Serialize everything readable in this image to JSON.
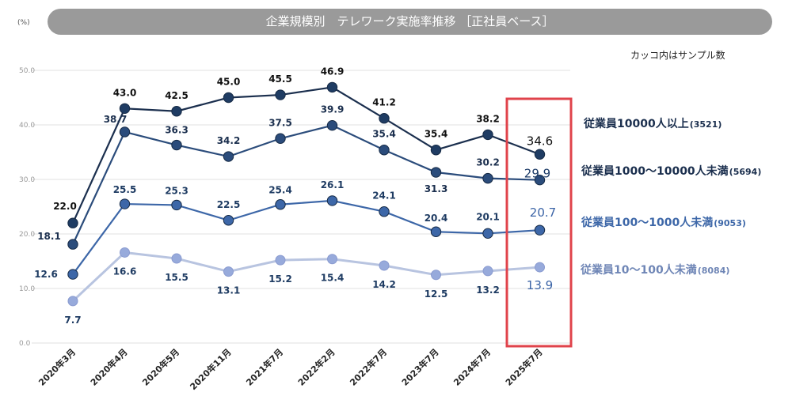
{
  "header": {
    "title": "企業規模別　テレワーク実施率推移 ［正社員ベース］",
    "unit": "(%)",
    "note": "カッコ内はサンプル数"
  },
  "chart_data": {
    "type": "line",
    "title": "企業規模別　テレワーク実施率推移 ［正社員ベース］",
    "ylabel": "(%)",
    "ylim": [
      0,
      50
    ],
    "yticks": [
      "0.0",
      "10.0",
      "20.0",
      "30.0",
      "40.0",
      "50.0"
    ],
    "categories": [
      "2020年3月",
      "2020年4月",
      "2020年5月",
      "2020年11月",
      "2021年7月",
      "2022年2月",
      "2022年7月",
      "2023年7月",
      "2024年7月",
      "2025年7月"
    ],
    "highlight_category": "2025年7月",
    "series": [
      {
        "name": "従業員10000人以上",
        "sample": "(3521)",
        "color": "#1b2f4e",
        "marker": "#1f3c63",
        "values": [
          22.0,
          43.0,
          42.5,
          45.0,
          45.5,
          46.9,
          41.2,
          35.4,
          38.2,
          34.6
        ],
        "labels": [
          "22.0",
          "43.0",
          "42.5",
          "45.0",
          "45.5",
          "46.9",
          "41.2",
          "35.4",
          "38.2",
          "34.6"
        ]
      },
      {
        "name": "従業員1000～10000人未満",
        "sample": "(5694)",
        "color": "#2b4c7b",
        "marker": "#2b4c7b",
        "values": [
          18.1,
          38.7,
          36.3,
          34.2,
          37.5,
          39.9,
          35.4,
          31.3,
          30.2,
          29.9
        ],
        "labels": [
          "18.1",
          "38.7",
          "36.3",
          "34.2",
          "37.5",
          "39.9",
          "35.4",
          "31.3",
          "30.2",
          "29.9"
        ]
      },
      {
        "name": "従業員100～1000人未満",
        "sample": "(9053)",
        "color": "#3d67a8",
        "marker": "#3d67a8",
        "values": [
          12.6,
          25.5,
          25.3,
          22.5,
          25.4,
          26.1,
          24.1,
          20.4,
          20.1,
          20.7
        ],
        "labels": [
          "12.6",
          "25.5",
          "25.3",
          "22.5",
          "25.4",
          "26.1",
          "24.1",
          "20.4",
          "20.1",
          "20.7"
        ]
      },
      {
        "name": "従業員10～100人未満",
        "sample": "(8084)",
        "color": "#b8c4e0",
        "marker": "#97aadb",
        "values": [
          7.7,
          16.6,
          15.5,
          13.1,
          15.2,
          15.4,
          14.2,
          12.5,
          13.2,
          13.9
        ],
        "labels": [
          "7.7",
          "16.6",
          "15.5",
          "13.1",
          "15.2",
          "15.4",
          "14.2",
          "12.5",
          "13.2",
          "13.9"
        ]
      }
    ]
  }
}
